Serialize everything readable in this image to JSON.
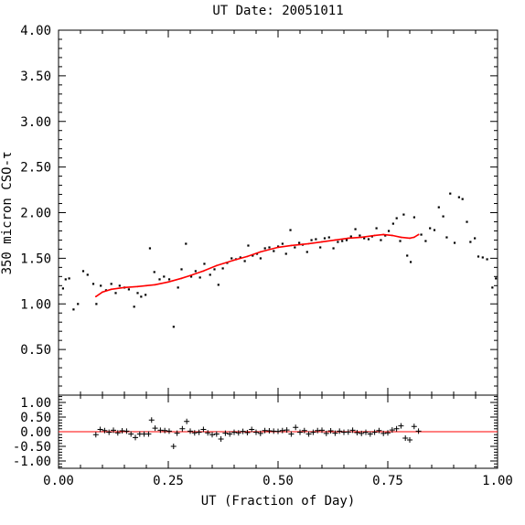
{
  "chart_data": [
    {
      "type": "scatter",
      "title": "UT Date: 20051011",
      "ylabel": "350 micron CSO-τ",
      "xlim": [
        0.0,
        1.0
      ],
      "ylim": [
        0.0,
        4.0
      ],
      "yticks": [
        "4.00",
        "3.50",
        "3.00",
        "2.50",
        "2.00",
        "1.50",
        "1.00",
        "0.50"
      ],
      "series": [
        {
          "points": [
            [
              0.01,
              1.17
            ],
            [
              0.016,
              1.27
            ],
            [
              0.024,
              1.28
            ],
            [
              0.034,
              0.94
            ],
            [
              0.044,
              1.0
            ],
            [
              0.056,
              1.36
            ],
            [
              0.066,
              1.32
            ],
            [
              0.079,
              1.22
            ],
            [
              0.086,
              1.0
            ],
            [
              0.096,
              1.2
            ],
            [
              0.108,
              1.15
            ],
            [
              0.12,
              1.22
            ],
            [
              0.13,
              1.12
            ],
            [
              0.139,
              1.2
            ],
            [
              0.15,
              1.18
            ],
            [
              0.16,
              1.16
            ],
            [
              0.172,
              0.97
            ],
            [
              0.18,
              1.12
            ],
            [
              0.188,
              1.08
            ],
            [
              0.198,
              1.1
            ],
            [
              0.208,
              1.61
            ],
            [
              0.218,
              1.35
            ],
            [
              0.23,
              1.27
            ],
            [
              0.24,
              1.3
            ],
            [
              0.252,
              1.27
            ],
            [
              0.262,
              0.75
            ],
            [
              0.272,
              1.18
            ],
            [
              0.28,
              1.38
            ],
            [
              0.29,
              1.66
            ],
            [
              0.302,
              1.3
            ],
            [
              0.312,
              1.36
            ],
            [
              0.322,
              1.29
            ],
            [
              0.332,
              1.44
            ],
            [
              0.345,
              1.32
            ],
            [
              0.355,
              1.38
            ],
            [
              0.364,
              1.21
            ],
            [
              0.374,
              1.39
            ],
            [
              0.384,
              1.45
            ],
            [
              0.394,
              1.5
            ],
            [
              0.404,
              1.49
            ],
            [
              0.414,
              1.51
            ],
            [
              0.424,
              1.47
            ],
            [
              0.432,
              1.64
            ],
            [
              0.442,
              1.53
            ],
            [
              0.452,
              1.55
            ],
            [
              0.46,
              1.5
            ],
            [
              0.47,
              1.61
            ],
            [
              0.48,
              1.62
            ],
            [
              0.49,
              1.58
            ],
            [
              0.5,
              1.63
            ],
            [
              0.51,
              1.66
            ],
            [
              0.518,
              1.55
            ],
            [
              0.528,
              1.81
            ],
            [
              0.538,
              1.62
            ],
            [
              0.548,
              1.67
            ],
            [
              0.556,
              1.65
            ],
            [
              0.566,
              1.57
            ],
            [
              0.576,
              1.7
            ],
            [
              0.586,
              1.71
            ],
            [
              0.596,
              1.62
            ],
            [
              0.606,
              1.72
            ],
            [
              0.616,
              1.73
            ],
            [
              0.626,
              1.61
            ],
            [
              0.636,
              1.68
            ],
            [
              0.646,
              1.69
            ],
            [
              0.656,
              1.7
            ],
            [
              0.666,
              1.74
            ],
            [
              0.676,
              1.82
            ],
            [
              0.686,
              1.75
            ],
            [
              0.696,
              1.72
            ],
            [
              0.706,
              1.71
            ],
            [
              0.714,
              1.74
            ],
            [
              0.724,
              1.83
            ],
            [
              0.734,
              1.7
            ],
            [
              0.744,
              1.75
            ],
            [
              0.752,
              1.8
            ],
            [
              0.762,
              1.88
            ],
            [
              0.77,
              1.94
            ],
            [
              0.778,
              1.69
            ],
            [
              0.786,
              1.98
            ],
            [
              0.794,
              1.53
            ],
            [
              0.802,
              1.46
            ],
            [
              0.81,
              1.95
            ],
            [
              0.826,
              1.76
            ],
            [
              0.836,
              1.69
            ],
            [
              0.846,
              1.83
            ],
            [
              0.856,
              1.81
            ],
            [
              0.866,
              2.06
            ],
            [
              0.876,
              1.96
            ],
            [
              0.884,
              1.73
            ],
            [
              0.892,
              2.21
            ],
            [
              0.902,
              1.67
            ],
            [
              0.912,
              2.17
            ],
            [
              0.92,
              2.15
            ],
            [
              0.93,
              1.9
            ],
            [
              0.938,
              1.68
            ],
            [
              0.948,
              1.72
            ],
            [
              0.956,
              1.52
            ],
            [
              0.966,
              1.51
            ],
            [
              0.976,
              1.49
            ],
            [
              0.988,
              1.18
            ],
            [
              0.996,
              1.28
            ]
          ]
        },
        {
          "line": true,
          "color": "#ff0000",
          "x": [
            0.085,
            0.1,
            0.12,
            0.15,
            0.18,
            0.2,
            0.22,
            0.25,
            0.28,
            0.3,
            0.33,
            0.36,
            0.4,
            0.43,
            0.46,
            0.5,
            0.53,
            0.57,
            0.6,
            0.63,
            0.66,
            0.69,
            0.72,
            0.74,
            0.76,
            0.78,
            0.8,
            0.81,
            0.82
          ],
          "y": [
            1.08,
            1.13,
            1.16,
            1.18,
            1.19,
            1.2,
            1.21,
            1.24,
            1.28,
            1.31,
            1.36,
            1.42,
            1.48,
            1.52,
            1.57,
            1.62,
            1.64,
            1.66,
            1.68,
            1.7,
            1.72,
            1.73,
            1.75,
            1.76,
            1.75,
            1.73,
            1.72,
            1.73,
            1.76
          ]
        }
      ]
    },
    {
      "type": "scatter",
      "xlabel": "UT (Fraction of Day)",
      "xlim": [
        0.0,
        1.0
      ],
      "ylim": [
        -1.25,
        1.25
      ],
      "xticks": [
        "0.00",
        "0.25",
        "0.50",
        "0.75",
        "1.00"
      ],
      "yticks": [
        "1.00",
        "0.50",
        "0.00",
        "-0.50",
        "-1.00"
      ],
      "series": [
        {
          "markers": "plus",
          "x": [
            0.085,
            0.095,
            0.105,
            0.115,
            0.125,
            0.135,
            0.145,
            0.155,
            0.165,
            0.175,
            0.185,
            0.195,
            0.205,
            0.212,
            0.22,
            0.232,
            0.242,
            0.252,
            0.262,
            0.27,
            0.282,
            0.292,
            0.3,
            0.31,
            0.32,
            0.33,
            0.34,
            0.35,
            0.36,
            0.37,
            0.38,
            0.39,
            0.4,
            0.41,
            0.42,
            0.43,
            0.44,
            0.45,
            0.46,
            0.47,
            0.48,
            0.49,
            0.5,
            0.51,
            0.52,
            0.53,
            0.54,
            0.55,
            0.56,
            0.57,
            0.58,
            0.59,
            0.6,
            0.61,
            0.62,
            0.63,
            0.64,
            0.65,
            0.66,
            0.67,
            0.68,
            0.69,
            0.7,
            0.71,
            0.72,
            0.73,
            0.74,
            0.75,
            0.76,
            0.77,
            0.78,
            0.79,
            0.8,
            0.81,
            0.82
          ],
          "y": [
            -0.1,
            0.08,
            0.04,
            -0.02,
            0.05,
            -0.04,
            0.03,
            0.02,
            -0.08,
            -0.2,
            -0.08,
            -0.08,
            -0.08,
            0.4,
            0.12,
            0.05,
            0.04,
            0.02,
            -0.5,
            -0.05,
            0.1,
            0.35,
            0.02,
            -0.04,
            -0.02,
            0.08,
            -0.04,
            -0.1,
            -0.08,
            -0.25,
            -0.05,
            -0.08,
            -0.02,
            -0.04,
            0.01,
            -0.03,
            0.08,
            -0.02,
            -0.06,
            0.04,
            0.03,
            0.02,
            0.01,
            0.04,
            0.06,
            -0.08,
            0.15,
            -0.02,
            0.04,
            -0.08,
            -0.02,
            0.04,
            0.05,
            -0.06,
            0.03,
            -0.05,
            0.02,
            -0.02,
            -0.01,
            0.05,
            -0.03,
            -0.06,
            -0.02,
            -0.08,
            -0.02,
            0.04,
            -0.06,
            -0.04,
            0.06,
            0.1,
            0.2,
            -0.22,
            -0.28,
            0.18,
            0.02
          ]
        },
        {
          "line": true,
          "color": "#ff0000",
          "x": [
            0.0,
            1.0
          ],
          "y": [
            0.0,
            0.0
          ]
        }
      ]
    }
  ]
}
